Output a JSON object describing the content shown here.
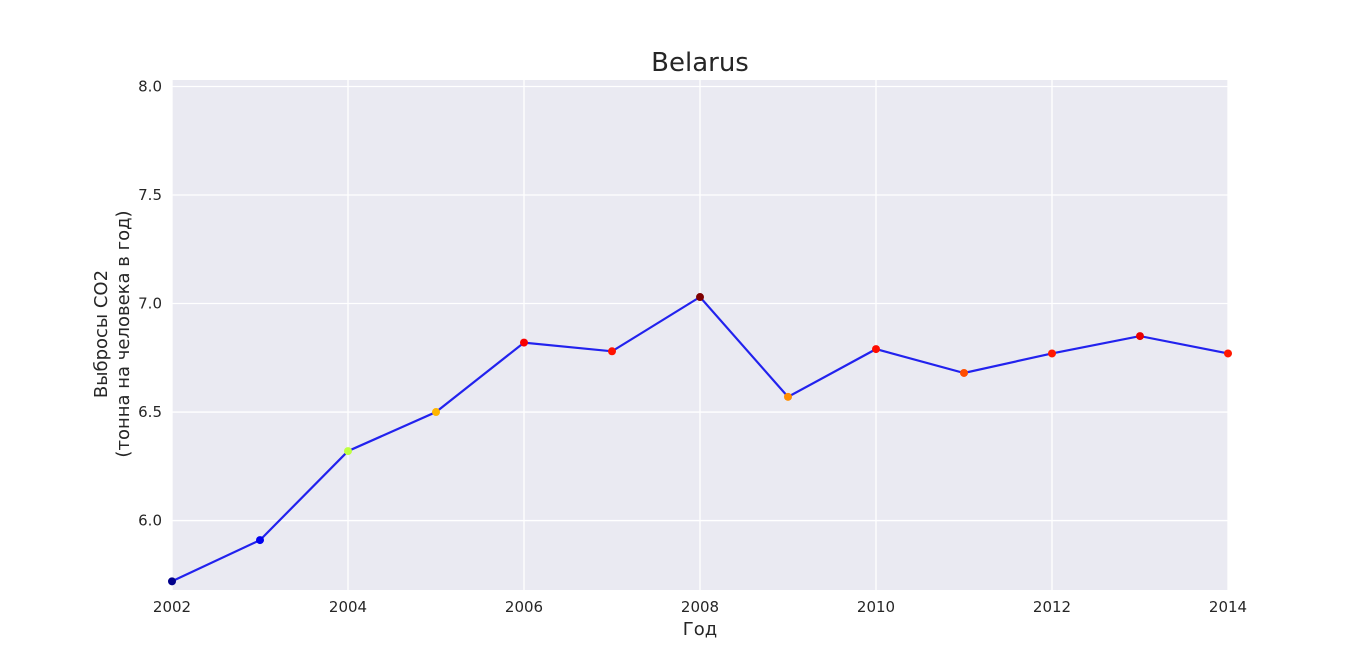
{
  "chart_data": {
    "type": "line",
    "title": "Belarus",
    "xlabel": "Год",
    "ylabel_line1": "Выбросы CO2",
    "ylabel_line2": "(тонна на человека в год)",
    "x": [
      2002,
      2003,
      2004,
      2005,
      2006,
      2007,
      2008,
      2009,
      2010,
      2011,
      2012,
      2013,
      2014
    ],
    "series": [
      {
        "values": [
          5.72,
          5.91,
          6.32,
          6.5,
          6.82,
          6.78,
          7.03,
          6.57,
          6.79,
          6.68,
          6.77,
          6.85,
          6.77
        ]
      }
    ],
    "xlim": [
      2002,
      2014
    ],
    "ylim": [
      5.68,
      8.03
    ],
    "xticks": [
      "2002",
      "2004",
      "2006",
      "2008",
      "2010",
      "2012",
      "2014"
    ],
    "yticks": [
      "6.0",
      "6.5",
      "7.0",
      "7.5",
      "8.0"
    ],
    "grid": true,
    "colors": {
      "background": "#eaeaf2",
      "grid": "#ffffff",
      "line": "#2222ee",
      "marker_colormap": [
        "#00008b",
        "#0000ff",
        "#00ffff",
        "#ffff00",
        "#ff7f00",
        "#ff0000",
        "#7f0000"
      ]
    }
  }
}
